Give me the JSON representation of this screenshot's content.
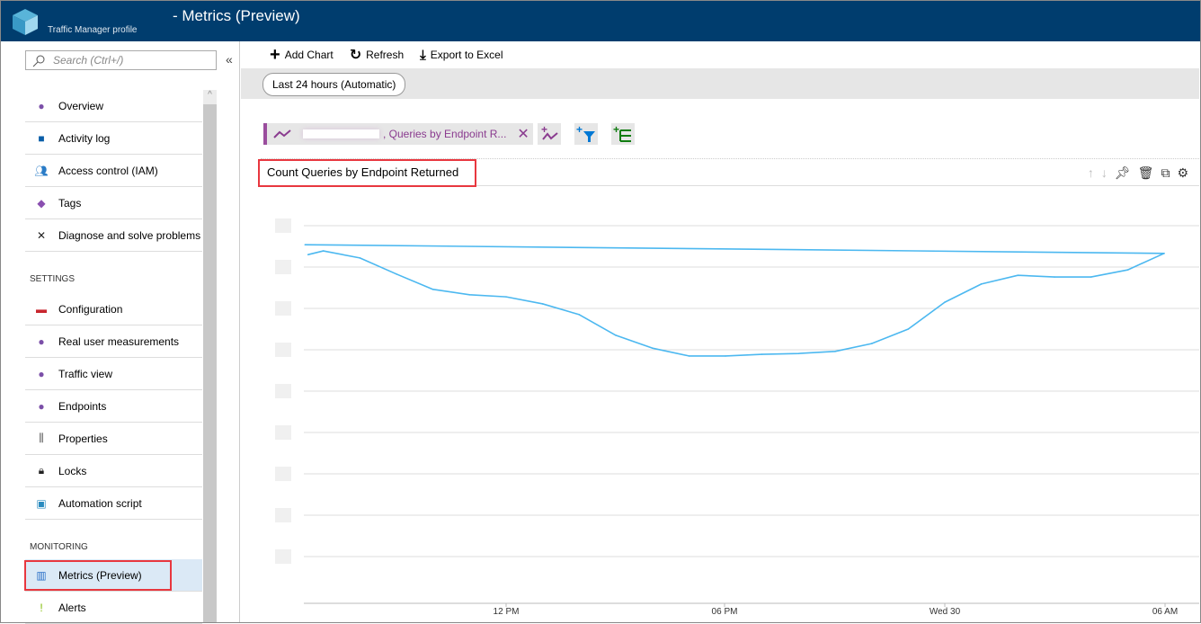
{
  "header": {
    "title": "- Metrics (Preview)",
    "subtitle": "Traffic Manager profile"
  },
  "sidebar": {
    "search_placeholder": "Search (Ctrl+/)",
    "collapse": "«",
    "items": [
      {
        "label": "Overview",
        "icon": "globe-icon"
      },
      {
        "label": "Activity log",
        "icon": "log-icon"
      },
      {
        "label": "Access control (IAM)",
        "icon": "users-icon"
      },
      {
        "label": "Tags",
        "icon": "tag-icon"
      },
      {
        "label": "Diagnose and solve problems",
        "icon": "wrench-icon"
      }
    ],
    "settings_header": "SETTINGS",
    "settings": [
      {
        "label": "Configuration",
        "icon": "toolbox-icon"
      },
      {
        "label": "Real user measurements",
        "icon": "globe-icon"
      },
      {
        "label": "Traffic view",
        "icon": "globe-icon"
      },
      {
        "label": "Endpoints",
        "icon": "globe-icon"
      },
      {
        "label": "Properties",
        "icon": "properties-icon"
      },
      {
        "label": "Locks",
        "icon": "lock-icon"
      },
      {
        "label": "Automation script",
        "icon": "script-icon"
      }
    ],
    "monitoring_header": "MONITORING",
    "monitoring": [
      {
        "label": "Metrics (Preview)",
        "icon": "chart-icon",
        "selected": true
      },
      {
        "label": "Alerts",
        "icon": "alert-icon"
      }
    ]
  },
  "toolbar": {
    "add_chart": "Add Chart",
    "refresh": "Refresh",
    "export": "Export to Excel"
  },
  "time_range": "Last 24 hours (Automatic)",
  "metric_chip": ", Queries by Endpoint R...",
  "colors": {
    "header": "#003d6e",
    "line": "#4cb8f0",
    "metric": "#8a3b8f",
    "highlight": "#e8373f"
  },
  "chart_data": {
    "type": "line",
    "title": "Count Queries by Endpoint Returned",
    "x_ticks": [
      "12 PM",
      "06 PM",
      "Wed 30",
      "06 AM"
    ],
    "x": [
      "06:35",
      "07:00",
      "08:00",
      "09:00",
      "10:00",
      "11:00",
      "12:00",
      "13:00",
      "14:00",
      "15:00",
      "16:00",
      "17:00",
      "18:00",
      "19:00",
      "20:00",
      "21:00",
      "22:00",
      "23:00",
      "Wed 00:00",
      "01:00",
      "02:00",
      "03:00",
      "04:00",
      "05:00",
      "06:00",
      "06:30"
    ],
    "values": [
      8.3,
      8.39,
      8.22,
      7.83,
      7.46,
      7.33,
      7.28,
      7.11,
      6.85,
      6.35,
      6.04,
      5.85,
      5.85,
      5.89,
      5.91,
      5.96,
      6.15,
      6.5,
      7.15,
      7.59,
      7.8,
      7.76,
      7.76,
      7.93,
      8.33,
      8.54
    ],
    "ylim": [
      0,
      9
    ],
    "grid": true
  }
}
